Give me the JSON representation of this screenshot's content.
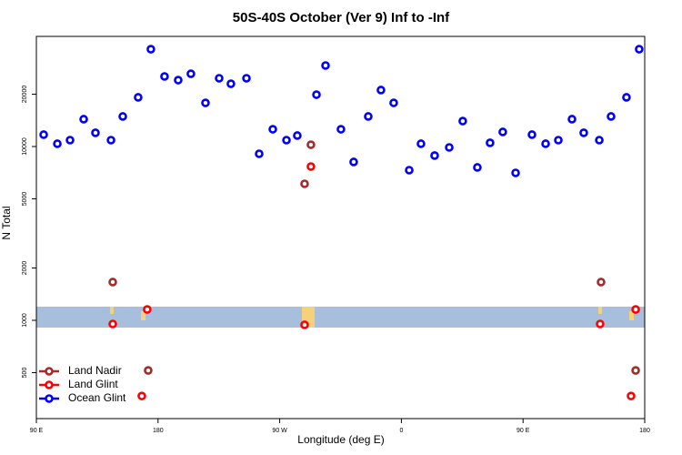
{
  "chart_data": {
    "type": "scatter",
    "title": "50S-40S October (Ver 9)   Inf to -Inf",
    "x_label": "Longitude (deg E)",
    "y_label": "N Total",
    "xlim": [
      90,
      540
    ],
    "xticks": [
      {
        "value": 90,
        "label": "90 E"
      },
      180,
      {
        "value": 270,
        "label": "90 W"
      },
      {
        "value": 360,
        "label": "0"
      },
      {
        "value": 450,
        "label": "90 E"
      },
      {
        "value": 540,
        "label": "180"
      }
    ],
    "ylim": [
      272,
      43000
    ],
    "yticks": [
      500,
      1000,
      2000,
      5000,
      10000,
      20000
    ],
    "ylog": true,
    "legend": "bottom-left",
    "series": [
      {
        "name": "Land Nadir",
        "color": "#a52a2a",
        "x": [
          146.5,
          172.7,
          293.1,
          288.4,
          507.7,
          533.3
        ],
        "values": [
          1660,
          515,
          10240,
          6100,
          1660,
          515
        ]
      },
      {
        "name": "Land Glint",
        "color": "#ff0000",
        "x": [
          146.5,
          168,
          172,
          293.1,
          288.4,
          507,
          529.9,
          533.3
        ],
        "values": [
          953,
          367,
          1155,
          7670,
          942,
          953,
          367,
          1155
        ]
      },
      {
        "name": "Ocean Glint",
        "color": "#0000ff",
        "x": [
          95.4,
          105.5,
          114.9,
          125,
          133.7,
          145.2,
          153.9,
          165.3,
          174.7,
          184.8,
          194.9,
          204.3,
          215.1,
          225.2,
          233.9,
          245.4,
          254.8,
          264.9,
          275,
          283,
          297.2,
          303.9,
          315.3,
          324.7,
          335.5,
          344.9,
          354.3,
          365.8,
          374.5,
          384.6,
          395.4,
          405.4,
          416.2,
          425.6,
          435,
          444.5,
          456.6,
          466.7,
          476.1,
          486.2,
          494.9,
          506.4,
          515.1,
          526.5,
          535.9
        ],
        "values": [
          11700,
          10370,
          10880,
          14360,
          11990,
          10880,
          14890,
          19180,
          36300,
          25300,
          24100,
          26200,
          17830,
          24700,
          22960,
          24700,
          9080,
          12570,
          10880,
          11560,
          19870,
          29240,
          12570,
          8150,
          14890,
          21120,
          17830,
          7310,
          10370,
          8870,
          9880,
          14010,
          7580,
          10500,
          12130,
          7050,
          11700,
          10370,
          10880,
          14360,
          11990,
          10880,
          14890,
          19180,
          36300
        ]
      }
    ]
  }
}
